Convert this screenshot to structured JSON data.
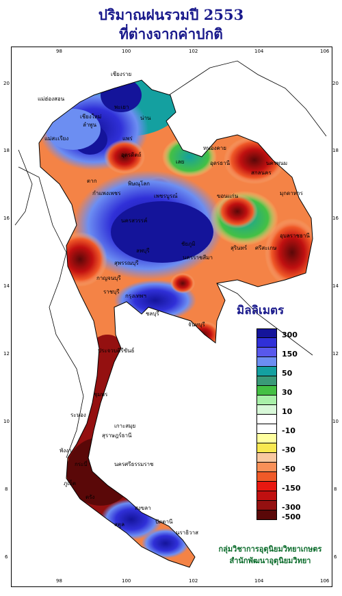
{
  "title_line1": "ปริมาณฝนรวมปี 2553",
  "title_line2": "ที่ต่างจากค่าปกติ",
  "legend": {
    "unit": "มิลลิเมตร",
    "bins": [
      {
        "label": "300",
        "color": "#14149a"
      },
      {
        "label": "",
        "color": "#3030d8"
      },
      {
        "label": "150",
        "color": "#5858ec"
      },
      {
        "label": "",
        "color": "#6c8ef2"
      },
      {
        "label": "50",
        "color": "#14a0a0"
      },
      {
        "label": "",
        "color": "#3a9a78"
      },
      {
        "label": "30",
        "color": "#44c044"
      },
      {
        "label": "",
        "color": "#a8f0a8"
      },
      {
        "label": "10",
        "color": "#d8f8d8"
      },
      {
        "label": "",
        "color": "#ffffff"
      },
      {
        "label": "-10",
        "color": "#ffffff"
      },
      {
        "label": "",
        "color": "#ffffa0"
      },
      {
        "label": "-30",
        "color": "#f8e850"
      },
      {
        "label": "",
        "color": "#f8c8a0"
      },
      {
        "label": "-50",
        "color": "#f89058"
      },
      {
        "label": "",
        "color": "#f05a28"
      },
      {
        "label": "-150",
        "color": "#e81810"
      },
      {
        "label": "",
        "color": "#c01010"
      },
      {
        "label": "-300",
        "color": "#941010"
      },
      {
        "label": "-500",
        "color": "#5a0808"
      }
    ]
  },
  "axis": {
    "lon_ticks": [
      "98",
      "100",
      "102",
      "104",
      "106"
    ],
    "lat_ticks": [
      "20",
      "18",
      "16",
      "14",
      "12",
      "10",
      "8",
      "6"
    ]
  },
  "provinces": [
    "เชียงราย",
    "แม่ฮ่องสอน",
    "เชียงใหม่",
    "ลำพูน",
    "พะเยา",
    "น่าน",
    "แพร่",
    "แม่สะเรียง",
    "อุตรดิตถ์",
    "เลย",
    "หนองคาย",
    "นครพนม",
    "สกลนคร",
    "อุดรธานี",
    "มุกดาหาร",
    "ขอนแก่น",
    "พิษณุโลก",
    "เพชรบูรณ์",
    "ตาก",
    "กำแพงเพชร",
    "นครสวรรค์",
    "ลพบุรี",
    "ชัยภูมิ",
    "อุบลราชธานี",
    "สุรินทร์",
    "ศรีสะเกษ",
    "สุพรรณบุรี",
    "กาญจนบุรี",
    "ราชบุรี",
    "กรุงเทพฯ",
    "ชลบุรี",
    "นครราชสีมา",
    "จันทบุรี",
    "ประจวบคีรีขันธ์",
    "ชุมพร",
    "ระนอง",
    "สุราษฎร์ธานี",
    "เกาะสมุย",
    "นครศรีธรรมราช",
    "พังงา",
    "ภูเก็ต",
    "กระบี่",
    "ตรัง",
    "สงขลา",
    "ปัตตานี",
    "นราธิวาส",
    "สตูล"
  ],
  "credit_line1": "กลุ่มวิชาการอุตุนิยมวิทยาเกษตร",
  "credit_line2": "สำนักพัฒนาอุตุนิยมวิทยา"
}
